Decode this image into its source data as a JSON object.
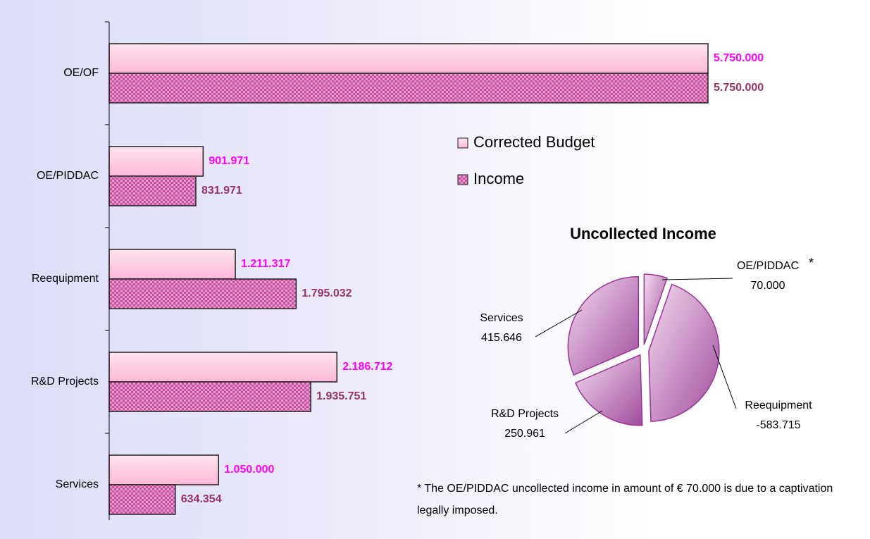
{
  "chart_data": [
    {
      "type": "bar",
      "orientation": "horizontal",
      "categories": [
        "OE/OF",
        "OE/PIDDAC",
        "Reequipment",
        "R&D Projects",
        "Services"
      ],
      "series": [
        {
          "name": "Corrected Budget",
          "color": "#ffc4dc",
          "label_color": "#ff00ff",
          "values": [
            5750000,
            901971,
            1211317,
            2186712,
            1050000
          ],
          "value_labels": [
            "5.750.000",
            "901.971",
            "1.211.317",
            "2.186.712",
            "1.050.000"
          ]
        },
        {
          "name": "Income",
          "color": "#c8509c",
          "label_color": "#993366",
          "values": [
            5750000,
            831971,
            1795032,
            1935751,
            634354
          ],
          "value_labels": [
            "5.750.000",
            "831.971",
            "1.795.032",
            "1.935.751",
            "634.354"
          ]
        }
      ],
      "legend": "right"
    },
    {
      "type": "pie",
      "title": "Uncollected Income",
      "categories": [
        "OE/PIDDAC",
        "Reequipment",
        "R&D Projects",
        "Services"
      ],
      "values": [
        70000,
        -583715,
        250961,
        415646
      ],
      "value_labels": [
        "70.000",
        "-583.715",
        "250.961",
        "415.646"
      ],
      "color": "#993399",
      "asterisk": "*",
      "footnote": "The OE/PIDDAC uncollected income in amount of € 70.000 is due to a captivation legally imposed."
    }
  ]
}
